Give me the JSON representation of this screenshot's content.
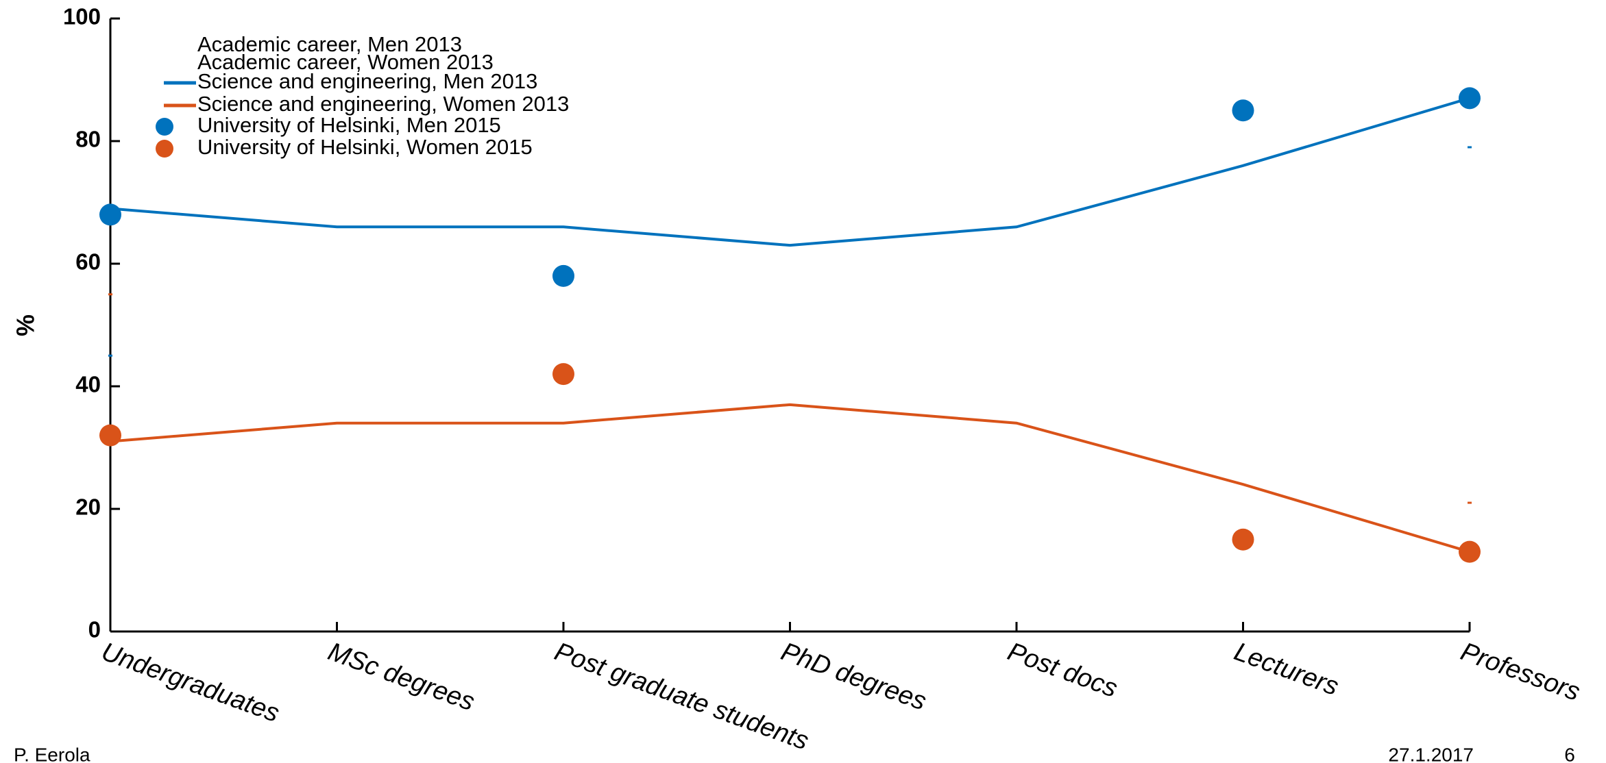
{
  "chart_data": {
    "type": "line",
    "ylabel": "%",
    "categories": [
      "Undergraduates",
      "MSc degrees",
      "Post graduate students",
      "PhD degrees",
      "Post docs",
      "Lecturers",
      "Professors"
    ],
    "ylim": [
      0,
      100
    ],
    "yticks": [
      0,
      20,
      40,
      60,
      80,
      100
    ],
    "series": [
      {
        "name": "Academic career, Men 2013",
        "color": "#0072bd",
        "style": "dashed",
        "values": [
          45,
          null,
          null,
          null,
          null,
          null,
          79
        ]
      },
      {
        "name": "Academic career, Women 2013",
        "color": "#d95319",
        "style": "dashed",
        "values": [
          55,
          null,
          null,
          null,
          null,
          null,
          21
        ]
      },
      {
        "name": "Science and engineering, Men 2013",
        "color": "#0072bd",
        "style": "line",
        "values": [
          69,
          66,
          66,
          63,
          66,
          76,
          87
        ]
      },
      {
        "name": "Science and engineering, Women 2013",
        "color": "#d95319",
        "style": "line",
        "values": [
          31,
          34,
          34,
          37,
          34,
          24,
          13
        ]
      },
      {
        "name": "University of Helsinki, Men 2015",
        "color": "#0072bd",
        "style": "marker",
        "values": [
          68,
          null,
          58,
          null,
          null,
          85,
          87
        ]
      },
      {
        "name": "University of Helsinki, Women 2015",
        "color": "#d95319",
        "style": "marker",
        "values": [
          32,
          null,
          42,
          null,
          null,
          15,
          13
        ]
      }
    ]
  },
  "footer": {
    "author": "P. Eerola",
    "date": "27.1.2017",
    "page": "6"
  }
}
